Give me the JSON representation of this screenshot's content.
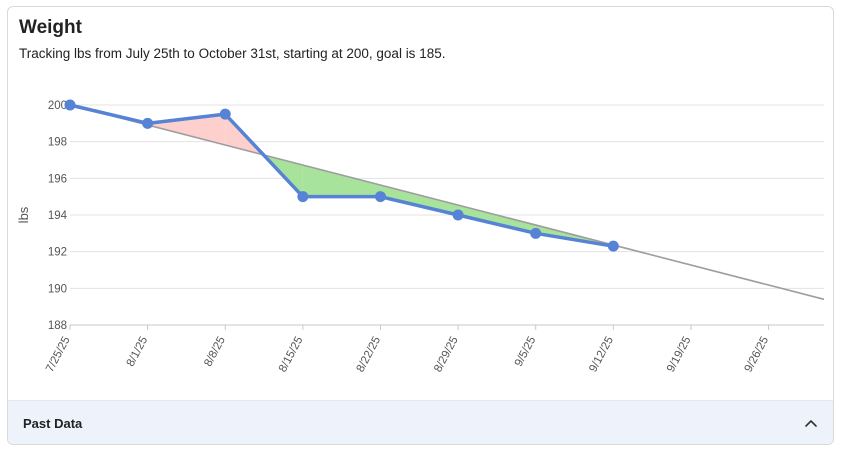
{
  "card": {
    "title": "Weight",
    "subtitle": "Tracking lbs from July 25th to October 31st, starting at 200, goal is 185."
  },
  "footer": {
    "label": "Past Data",
    "icon": "chevron-up-icon"
  },
  "colors": {
    "actual": "#5683d6",
    "goal_line": "#9e9e9e",
    "above_fill": "#fdd0cd",
    "below_fill": "#a8e39b",
    "grid": "#e3e3e3",
    "axis": "#c8c8c8",
    "tick_text": "#555555"
  },
  "chart_data": {
    "type": "line",
    "title": "",
    "xlabel": "",
    "ylabel": "lbs",
    "ylim": [
      188,
      200
    ],
    "xlim": [
      "7/25/25",
      "10/1/25"
    ],
    "y_ticks": [
      188,
      190,
      192,
      194,
      196,
      198,
      200
    ],
    "x_ticks": [
      "7/25/25",
      "8/1/25",
      "8/8/25",
      "8/15/25",
      "8/22/25",
      "8/29/25",
      "9/5/25",
      "9/12/25",
      "9/19/25",
      "9/26/25"
    ],
    "grid": true,
    "series": [
      {
        "x": [
          "7/25/25",
          "8/1/25",
          "8/8/25",
          "8/15/25",
          "8/22/25",
          "8/29/25",
          "9/5/25",
          "9/12/25"
        ],
        "values": [
          200,
          199,
          199.5,
          195,
          195,
          194,
          193,
          192.3
        ]
      }
    ],
    "goal_line": {
      "x": [
        "7/25/25",
        "10/1/25"
      ],
      "values": [
        200,
        189.4
      ]
    }
  }
}
